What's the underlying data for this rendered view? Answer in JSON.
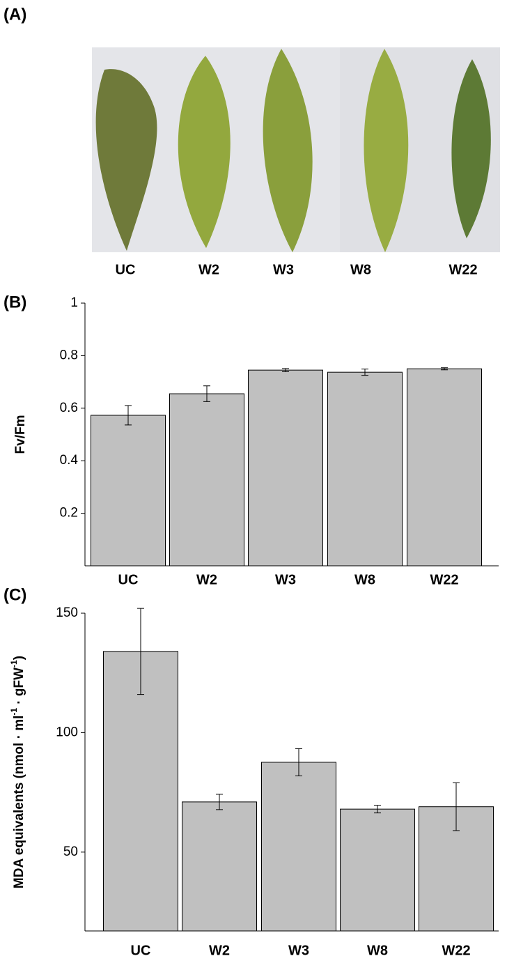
{
  "photo": {
    "label": "(A)",
    "captions": [
      "UC",
      "W2",
      "W3",
      "W8",
      "W22"
    ]
  },
  "chart_data": [
    {
      "type": "bar",
      "panel": "(B)",
      "y_label": "Fv/Fm",
      "categories": [
        "UC",
        "W2",
        "W3",
        "W8",
        "W22"
      ],
      "values": [
        0.573,
        0.655,
        0.745,
        0.737,
        0.75
      ],
      "errors": [
        0.037,
        0.03,
        0.006,
        0.012,
        0.004
      ],
      "color": "#c0c0c0",
      "ylim": [
        0,
        1
      ],
      "yticks": [
        0.2,
        0.4,
        0.6,
        0.8,
        1
      ],
      "grid": false
    },
    {
      "type": "bar",
      "panel": "(C)",
      "y_label": [
        "MDA equivalents (nmol · ml",
        "-1",
        " · gFW",
        "-1",
        ")"
      ],
      "categories": [
        "UC",
        "W2",
        "W3",
        "W8",
        "W22"
      ],
      "values": [
        134,
        71,
        87.6,
        68,
        69
      ],
      "errors": [
        18,
        3.2,
        5.7,
        1.6,
        10
      ],
      "color": "#c0c0c0",
      "ylim": [
        17,
        150
      ],
      "yticks": [
        50,
        100,
        150
      ],
      "grid": false
    }
  ]
}
